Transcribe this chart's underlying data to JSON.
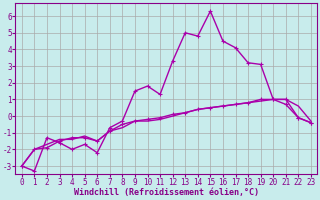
{
  "title": "",
  "xlabel": "Windchill (Refroidissement éolien,°C)",
  "ylabel": "",
  "background_color": "#c8ecec",
  "line_color": "#aa00aa",
  "grid_color": "#aaaaaa",
  "xlim": [
    -0.5,
    23.5
  ],
  "ylim": [
    -3.5,
    6.8
  ],
  "yticks": [
    -3,
    -2,
    -1,
    0,
    1,
    2,
    3,
    4,
    5,
    6
  ],
  "xticks": [
    0,
    1,
    2,
    3,
    4,
    5,
    6,
    7,
    8,
    9,
    10,
    11,
    12,
    13,
    14,
    15,
    16,
    17,
    18,
    19,
    20,
    21,
    22,
    23
  ],
  "series1_x": [
    0,
    1,
    2,
    3,
    4,
    5,
    6,
    7,
    8,
    9,
    10,
    11,
    12,
    13,
    14,
    15,
    16,
    17,
    18,
    19,
    20,
    21,
    22,
    23
  ],
  "series1_y": [
    -3.0,
    -3.3,
    -1.3,
    -1.6,
    -2.0,
    -1.7,
    -2.2,
    -0.7,
    -0.3,
    1.5,
    1.8,
    1.3,
    3.3,
    5.0,
    4.8,
    6.3,
    4.5,
    4.1,
    3.2,
    3.1,
    1.0,
    1.0,
    -0.1,
    -0.4
  ],
  "series2_x": [
    0,
    1,
    2,
    3,
    4,
    5,
    6,
    7,
    8,
    9,
    10,
    11,
    12,
    13,
    14,
    15,
    16,
    17,
    18,
    19,
    20,
    21,
    22,
    23
  ],
  "series2_y": [
    -3.0,
    -2.0,
    -1.9,
    -1.5,
    -1.3,
    -1.3,
    -1.5,
    -0.9,
    -0.5,
    -0.3,
    -0.2,
    -0.1,
    0.1,
    0.2,
    0.4,
    0.5,
    0.6,
    0.7,
    0.8,
    1.0,
    1.0,
    0.7,
    -0.1,
    -0.4
  ],
  "series3_x": [
    0,
    1,
    2,
    3,
    4,
    5,
    6,
    7,
    8,
    9,
    10,
    11,
    12,
    13,
    14,
    15,
    16,
    17,
    18,
    19,
    20,
    21,
    22,
    23
  ],
  "series3_y": [
    -3.0,
    -2.0,
    -1.7,
    -1.4,
    -1.4,
    -1.2,
    -1.5,
    -0.9,
    -0.7,
    -0.3,
    -0.3,
    -0.2,
    0.0,
    0.2,
    0.4,
    0.5,
    0.6,
    0.7,
    0.8,
    0.9,
    1.0,
    1.0,
    0.6,
    -0.3
  ],
  "xlabel_fontsize": 6,
  "tick_fontsize": 5.5,
  "line_width": 1.0,
  "marker_size": 2.5
}
